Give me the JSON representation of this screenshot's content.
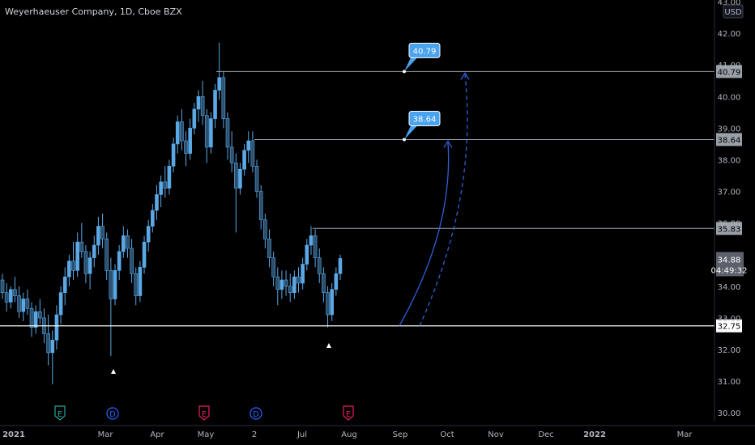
{
  "header": {
    "title": "Weyerhaeuser Company, 1D, Cboe BZX",
    "currency": "USD"
  },
  "colors": {
    "background": "#000000",
    "candle": "#5aa9e6",
    "candle_dark": "#2b4f6c",
    "hline": "#9aa0a8",
    "support": "#ffffff",
    "arc": "#2f5fd8",
    "callout": "#4aa3ee"
  },
  "chart_data": {
    "type": "candlestick",
    "symbol": "Weyerhaeuser Company, 1D, Cboe BZX",
    "y_axis": {
      "range": [
        29.75,
        43.0
      ],
      "ticks": [
        "43.00",
        "42.00",
        "41.00",
        "40.00",
        "39.00",
        "38.00",
        "37.00",
        "36.00",
        "35.00",
        "34.00",
        "33.00",
        "32.00",
        "31.00",
        "30.00"
      ],
      "unit": "USD"
    },
    "x_axis": {
      "labels": [
        "2021",
        "Mar",
        "Apr",
        "May",
        "2",
        "Jul",
        "Aug",
        "Sep",
        "Oct",
        "Nov",
        "Dec",
        "2022",
        "Mar"
      ]
    },
    "candles": [
      {
        "o": 34.2,
        "h": 34.4,
        "l": 33.6,
        "c": 33.8
      },
      {
        "o": 33.8,
        "h": 34.1,
        "l": 33.2,
        "c": 33.5
      },
      {
        "o": 33.5,
        "h": 34.0,
        "l": 33.3,
        "c": 33.9
      },
      {
        "o": 33.9,
        "h": 34.3,
        "l": 33.5,
        "c": 33.7
      },
      {
        "o": 33.7,
        "h": 34.0,
        "l": 33.0,
        "c": 33.2
      },
      {
        "o": 33.2,
        "h": 33.8,
        "l": 32.9,
        "c": 33.6
      },
      {
        "o": 33.6,
        "h": 33.9,
        "l": 33.1,
        "c": 33.3
      },
      {
        "o": 33.3,
        "h": 33.5,
        "l": 32.4,
        "c": 32.7
      },
      {
        "o": 32.7,
        "h": 33.4,
        "l": 32.5,
        "c": 33.2
      },
      {
        "o": 33.2,
        "h": 33.6,
        "l": 32.8,
        "c": 33.0
      },
      {
        "o": 33.0,
        "h": 33.3,
        "l": 32.2,
        "c": 32.5
      },
      {
        "o": 32.5,
        "h": 33.1,
        "l": 31.5,
        "c": 31.9
      },
      {
        "o": 31.9,
        "h": 32.6,
        "l": 30.9,
        "c": 32.3
      },
      {
        "o": 32.3,
        "h": 33.4,
        "l": 32.0,
        "c": 33.1
      },
      {
        "o": 33.1,
        "h": 34.0,
        "l": 32.8,
        "c": 33.8
      },
      {
        "o": 33.8,
        "h": 34.6,
        "l": 33.4,
        "c": 34.3
      },
      {
        "o": 34.3,
        "h": 35.0,
        "l": 34.0,
        "c": 34.8
      },
      {
        "o": 34.8,
        "h": 35.4,
        "l": 34.2,
        "c": 34.5
      },
      {
        "o": 34.5,
        "h": 35.7,
        "l": 34.3,
        "c": 35.4
      },
      {
        "o": 35.4,
        "h": 36.0,
        "l": 34.9,
        "c": 35.1
      },
      {
        "o": 35.1,
        "h": 35.3,
        "l": 34.1,
        "c": 34.4
      },
      {
        "o": 34.4,
        "h": 35.1,
        "l": 33.9,
        "c": 34.9
      },
      {
        "o": 34.9,
        "h": 35.6,
        "l": 34.6,
        "c": 35.3
      },
      {
        "o": 35.3,
        "h": 36.2,
        "l": 35.0,
        "c": 35.9
      },
      {
        "o": 35.9,
        "h": 36.3,
        "l": 35.2,
        "c": 35.5
      },
      {
        "o": 35.5,
        "h": 35.7,
        "l": 34.2,
        "c": 34.5
      },
      {
        "o": 34.5,
        "h": 34.9,
        "l": 31.8,
        "c": 33.6
      },
      {
        "o": 33.6,
        "h": 34.7,
        "l": 33.4,
        "c": 34.5
      },
      {
        "o": 34.5,
        "h": 35.3,
        "l": 34.2,
        "c": 35.1
      },
      {
        "o": 35.1,
        "h": 35.9,
        "l": 34.9,
        "c": 35.6
      },
      {
        "o": 35.6,
        "h": 35.8,
        "l": 34.9,
        "c": 35.2
      },
      {
        "o": 35.2,
        "h": 35.5,
        "l": 34.1,
        "c": 34.4
      },
      {
        "o": 34.4,
        "h": 34.6,
        "l": 33.4,
        "c": 33.7
      },
      {
        "o": 33.7,
        "h": 34.8,
        "l": 33.5,
        "c": 34.6
      },
      {
        "o": 34.6,
        "h": 35.6,
        "l": 34.4,
        "c": 35.4
      },
      {
        "o": 35.4,
        "h": 36.1,
        "l": 35.1,
        "c": 35.9
      },
      {
        "o": 35.9,
        "h": 36.6,
        "l": 35.7,
        "c": 36.4
      },
      {
        "o": 36.4,
        "h": 37.2,
        "l": 36.1,
        "c": 36.9
      },
      {
        "o": 36.9,
        "h": 37.5,
        "l": 36.5,
        "c": 37.3
      },
      {
        "o": 37.3,
        "h": 37.8,
        "l": 36.8,
        "c": 37.1
      },
      {
        "o": 37.1,
        "h": 38.0,
        "l": 36.9,
        "c": 37.8
      },
      {
        "o": 37.8,
        "h": 38.7,
        "l": 37.6,
        "c": 38.5
      },
      {
        "o": 38.5,
        "h": 39.4,
        "l": 38.2,
        "c": 39.2
      },
      {
        "o": 39.2,
        "h": 39.6,
        "l": 38.3,
        "c": 38.6
      },
      {
        "o": 38.6,
        "h": 38.9,
        "l": 37.8,
        "c": 38.2
      },
      {
        "o": 38.2,
        "h": 39.3,
        "l": 38.0,
        "c": 39.0
      },
      {
        "o": 39.0,
        "h": 39.8,
        "l": 38.8,
        "c": 39.6
      },
      {
        "o": 39.6,
        "h": 40.2,
        "l": 39.2,
        "c": 40.0
      },
      {
        "o": 40.0,
        "h": 40.5,
        "l": 39.1,
        "c": 39.4
      },
      {
        "o": 39.4,
        "h": 39.6,
        "l": 37.9,
        "c": 38.4
      },
      {
        "o": 38.4,
        "h": 39.5,
        "l": 38.2,
        "c": 39.3
      },
      {
        "o": 39.3,
        "h": 40.4,
        "l": 39.0,
        "c": 40.2
      },
      {
        "o": 40.2,
        "h": 41.7,
        "l": 39.9,
        "c": 40.6
      },
      {
        "o": 40.6,
        "h": 40.8,
        "l": 39.0,
        "c": 39.3
      },
      {
        "o": 39.3,
        "h": 39.5,
        "l": 38.0,
        "c": 38.4
      },
      {
        "o": 38.4,
        "h": 38.9,
        "l": 37.6,
        "c": 37.9
      },
      {
        "o": 37.9,
        "h": 38.2,
        "l": 35.7,
        "c": 37.1
      },
      {
        "o": 37.1,
        "h": 37.9,
        "l": 36.9,
        "c": 37.7
      },
      {
        "o": 37.7,
        "h": 38.5,
        "l": 37.5,
        "c": 38.3
      },
      {
        "o": 38.3,
        "h": 38.9,
        "l": 37.9,
        "c": 38.6
      },
      {
        "o": 38.6,
        "h": 38.9,
        "l": 37.6,
        "c": 37.8
      },
      {
        "o": 37.8,
        "h": 38.0,
        "l": 36.8,
        "c": 37.0
      },
      {
        "o": 37.0,
        "h": 37.2,
        "l": 35.8,
        "c": 36.1
      },
      {
        "o": 36.1,
        "h": 36.3,
        "l": 35.2,
        "c": 35.5
      },
      {
        "o": 35.5,
        "h": 35.8,
        "l": 34.6,
        "c": 34.9
      },
      {
        "o": 34.9,
        "h": 35.1,
        "l": 34.0,
        "c": 34.3
      },
      {
        "o": 34.3,
        "h": 34.6,
        "l": 33.4,
        "c": 33.9
      },
      {
        "o": 33.9,
        "h": 34.5,
        "l": 33.6,
        "c": 34.2
      },
      {
        "o": 34.2,
        "h": 34.5,
        "l": 33.7,
        "c": 34.0
      },
      {
        "o": 34.0,
        "h": 34.4,
        "l": 33.5,
        "c": 33.8
      },
      {
        "o": 33.8,
        "h": 34.5,
        "l": 33.6,
        "c": 34.3
      },
      {
        "o": 34.3,
        "h": 34.6,
        "l": 33.8,
        "c": 34.1
      },
      {
        "o": 34.1,
        "h": 34.9,
        "l": 33.9,
        "c": 34.7
      },
      {
        "o": 34.7,
        "h": 35.5,
        "l": 34.5,
        "c": 35.3
      },
      {
        "o": 35.3,
        "h": 35.9,
        "l": 35.0,
        "c": 35.6
      },
      {
        "o": 35.6,
        "h": 35.8,
        "l": 34.6,
        "c": 34.9
      },
      {
        "o": 34.9,
        "h": 35.2,
        "l": 34.1,
        "c": 34.4
      },
      {
        "o": 34.4,
        "h": 34.6,
        "l": 33.5,
        "c": 33.8
      },
      {
        "o": 33.8,
        "h": 34.0,
        "l": 32.7,
        "c": 33.1
      },
      {
        "o": 33.1,
        "h": 34.1,
        "l": 32.9,
        "c": 33.9
      },
      {
        "o": 33.9,
        "h": 34.6,
        "l": 33.7,
        "c": 34.4
      },
      {
        "o": 34.4,
        "h": 35.0,
        "l": 34.2,
        "c": 34.88
      }
    ],
    "horizontal_lines": [
      {
        "value": 40.79,
        "label": "40.79",
        "callout": "40.79"
      },
      {
        "value": 38.64,
        "label": "38.64",
        "callout": "38.64"
      },
      {
        "value": 35.83,
        "label": "35.83"
      },
      {
        "value": 32.75,
        "label": "32.75",
        "style": "support"
      }
    ],
    "last_price": {
      "value": 34.88,
      "label": "34.88",
      "countdown": "04:49:32"
    },
    "event_markers": [
      {
        "type": "E",
        "color": "#26a69a",
        "x_label": "2021"
      },
      {
        "type": "D",
        "color": "#2962ff",
        "x_label": "Mar"
      },
      {
        "type": "E",
        "color": "#e91e63",
        "x_label": "May"
      },
      {
        "type": "D",
        "color": "#2962ff",
        "x_label": "2"
      },
      {
        "type": "E",
        "color": "#e91e63",
        "x_label": "Aug"
      }
    ]
  }
}
